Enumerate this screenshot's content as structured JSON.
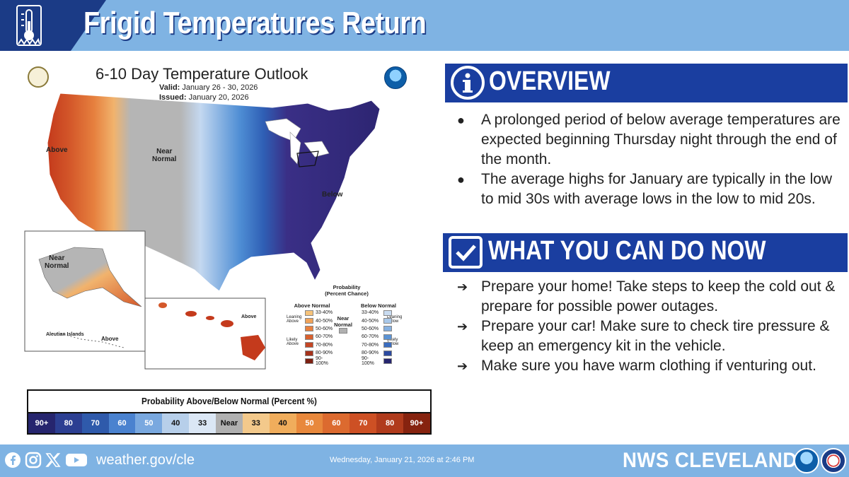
{
  "header": {
    "title": "Frigid Temperatures Return",
    "icon": "thermometer-icon"
  },
  "map": {
    "title": "6-10 Day Temperature Outlook",
    "valid_label": "Valid:",
    "valid_dates": "January 26 - 30, 2026",
    "issued_label": "Issued:",
    "issued_date": "January 20, 2026",
    "labels": {
      "above_west": "Above",
      "near_normal": "Near\nNormal",
      "below_east": "Below",
      "alaska_near": "Near\nNormal",
      "aleutian": "Aleutian Islands",
      "alaska_above": "Above",
      "hawaii_above": "Above"
    },
    "legend": {
      "title": "Probability\n(Percent Chance)",
      "above_title": "Above Normal",
      "below_title": "Below Normal",
      "near_title": "Near\nNormal",
      "leaning_above": "Leaning\nAbove",
      "likely_above": "Likely\nAbove",
      "leaning_below": "Leaning\nBelow",
      "likely_below": "Likely\nBelow",
      "ranges": [
        "33-40%",
        "40-50%",
        "50-60%",
        "60-70%",
        "70-80%",
        "80-90%",
        "90-100%"
      ],
      "above_colors": [
        "#f6c37a",
        "#f0a35a",
        "#e8803e",
        "#d9602e",
        "#c44624",
        "#a5321b",
        "#7c2012"
      ],
      "below_colors": [
        "#c9dcf1",
        "#a9c8ea",
        "#85b0e0",
        "#5b93d4",
        "#3a6dc0",
        "#2c4aa0",
        "#26256e"
      ],
      "near_color": "#b0b0b0"
    }
  },
  "probability_bar": {
    "title": "Probability Above/Below Normal (Percent %)",
    "cells": [
      {
        "label": "90+",
        "bg": "#26256e",
        "fg": "#ffffff"
      },
      {
        "label": "80",
        "bg": "#2c3f92",
        "fg": "#ffffff"
      },
      {
        "label": "70",
        "bg": "#2f5aab",
        "fg": "#ffffff"
      },
      {
        "label": "60",
        "bg": "#4a82cf",
        "fg": "#ffffff"
      },
      {
        "label": "50",
        "bg": "#79a8df",
        "fg": "#ffffff"
      },
      {
        "label": "40",
        "bg": "#b7cfea",
        "fg": "#111111"
      },
      {
        "label": "33",
        "bg": "#dbe7f5",
        "fg": "#111111"
      },
      {
        "label": "Near",
        "bg": "#b0b0b0",
        "fg": "#111111"
      },
      {
        "label": "33",
        "bg": "#f3c98b",
        "fg": "#111111"
      },
      {
        "label": "40",
        "bg": "#f0ad5c",
        "fg": "#111111"
      },
      {
        "label": "50",
        "bg": "#e8883c",
        "fg": "#ffffff"
      },
      {
        "label": "60",
        "bg": "#dc6a2f",
        "fg": "#ffffff"
      },
      {
        "label": "70",
        "bg": "#cd5024",
        "fg": "#ffffff"
      },
      {
        "label": "80",
        "bg": "#b03b1c",
        "fg": "#ffffff"
      },
      {
        "label": "90+",
        "bg": "#86230f",
        "fg": "#ffffff"
      }
    ]
  },
  "overview": {
    "title": "OVERVIEW",
    "icon": "info-icon",
    "bullets": [
      "A prolonged period of below average temperatures are expected beginning Thursday night through the end of the month.",
      "The average highs for January are typically in the low to mid 30s with average lows in the low to mid 20s."
    ]
  },
  "actions": {
    "title": "WHAT YOU CAN DO NOW",
    "icon": "checkbox-icon",
    "bullets": [
      "Prepare your home! Take steps to keep the cold out & prepare for possible power outages.",
      "Prepare your car! Make sure to check tire pressure & keep an emergency kit in the vehicle.",
      "Make sure you have warm clothing if venturing out."
    ]
  },
  "footer": {
    "social_icons": [
      "facebook-icon",
      "instagram-icon",
      "x-icon",
      "youtube-icon"
    ],
    "website": "weather.gov/cle",
    "timestamp": "Wednesday, January 21, 2026 at 2:46 PM",
    "brand": "NWS CLEVELAND",
    "logos": [
      "noaa-logo",
      "nws-logo"
    ]
  }
}
